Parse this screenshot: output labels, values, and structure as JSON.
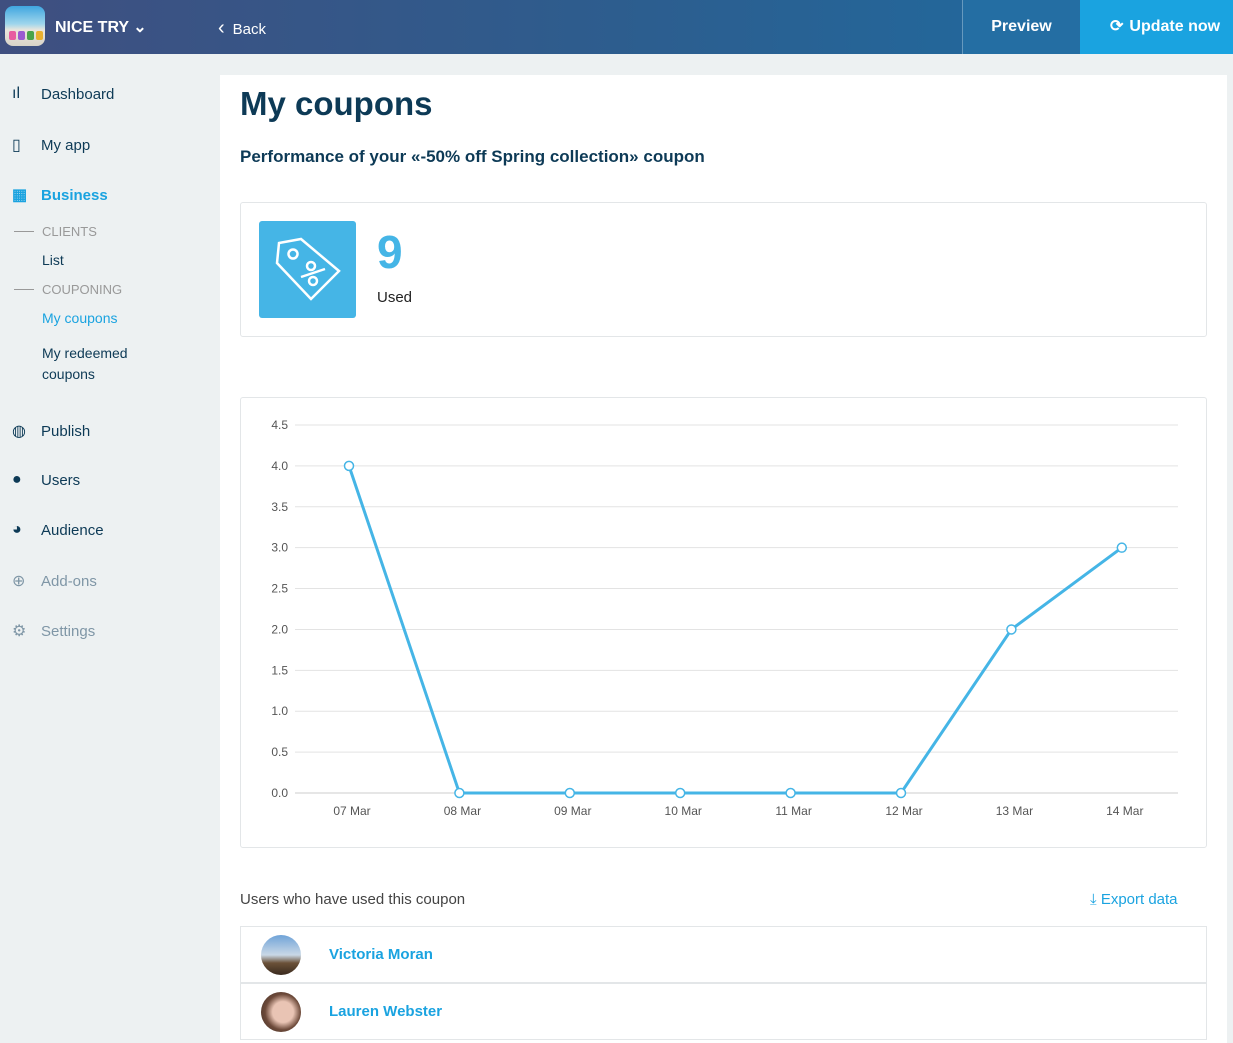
{
  "header": {
    "app_name": "NICE TRY",
    "back": "Back",
    "preview": "Preview",
    "update": "Update now"
  },
  "sidebar": {
    "items": [
      {
        "label": "Dashboard",
        "icon": "bar-chart-icon"
      },
      {
        "label": "My app",
        "icon": "phone-icon"
      },
      {
        "label": "Business",
        "icon": "store-icon",
        "active": true
      }
    ],
    "sections": [
      {
        "title": "CLIENTS",
        "items": [
          "List"
        ]
      },
      {
        "title": "COUPONING",
        "items": [
          "My coupons",
          "My redeemed coupons"
        ]
      }
    ],
    "items2": [
      {
        "label": "Publish",
        "icon": "globe-icon"
      },
      {
        "label": "Users",
        "icon": "user-icon"
      },
      {
        "label": "Audience",
        "icon": "pie-icon"
      },
      {
        "label": "Add-ons",
        "icon": "plus-circle-icon"
      },
      {
        "label": "Settings",
        "icon": "gear-icon"
      }
    ]
  },
  "page": {
    "title": "My coupons",
    "subtitle": "Performance of your «-50% off Spring collection» coupon",
    "stat_value": "9",
    "stat_label": "Used",
    "users_label": "Users who have used this coupon",
    "export": "Export data",
    "users": [
      {
        "name": "Victoria Moran"
      },
      {
        "name": "Lauren Webster"
      }
    ]
  },
  "colors": {
    "accent": "#45b5e6",
    "link": "#1aa3e0",
    "navy": "#0d3a56"
  },
  "chart_data": {
    "type": "line",
    "categories": [
      "07 Mar",
      "08 Mar",
      "09 Mar",
      "10 Mar",
      "11 Mar",
      "12 Mar",
      "13 Mar",
      "14 Mar"
    ],
    "values": [
      4,
      0,
      0,
      0,
      0,
      0,
      2,
      3
    ],
    "ylim": [
      0,
      4.5
    ],
    "yticks": [
      "0.0",
      "0.5",
      "1.0",
      "1.5",
      "2.0",
      "2.5",
      "3.0",
      "3.5",
      "4.0",
      "4.5"
    ],
    "grid": true
  }
}
